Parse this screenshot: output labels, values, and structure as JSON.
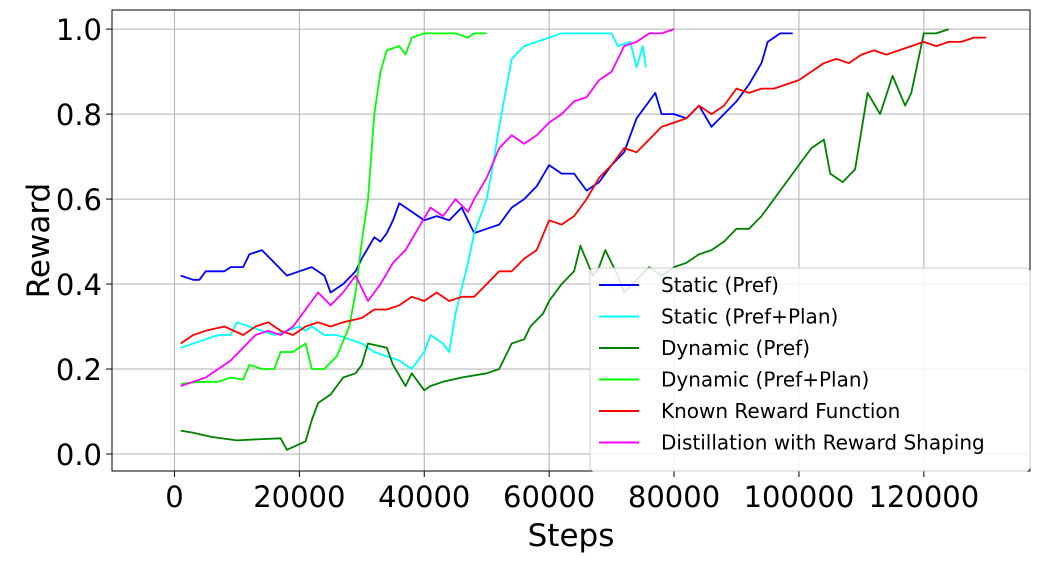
{
  "chart_data": {
    "type": "line",
    "xlabel": "Steps",
    "ylabel": "Reward",
    "xlim": [
      -10000,
      137000
    ],
    "ylim": [
      -0.04,
      1.045
    ],
    "xticks": [
      0,
      20000,
      40000,
      60000,
      80000,
      100000,
      120000
    ],
    "xtick_labels": [
      "0",
      "20000",
      "40000",
      "60000",
      "80000",
      "100000",
      "120000"
    ],
    "yticks": [
      0.0,
      0.2,
      0.4,
      0.6,
      0.8,
      1.0
    ],
    "ytick_labels": [
      "0.0",
      "0.2",
      "0.4",
      "0.6",
      "0.8",
      "1.0"
    ],
    "grid": true,
    "legend_position": "lower-right",
    "series": [
      {
        "name": "Static (Pref)",
        "color": "#0000ff",
        "points": [
          [
            1000,
            0.42
          ],
          [
            3000,
            0.41
          ],
          [
            4000,
            0.41
          ],
          [
            5000,
            0.43
          ],
          [
            8000,
            0.43
          ],
          [
            9000,
            0.44
          ],
          [
            11000,
            0.44
          ],
          [
            12000,
            0.47
          ],
          [
            14000,
            0.48
          ],
          [
            16000,
            0.45
          ],
          [
            18000,
            0.42
          ],
          [
            20000,
            0.43
          ],
          [
            22000,
            0.44
          ],
          [
            24000,
            0.42
          ],
          [
            25000,
            0.38
          ],
          [
            27000,
            0.4
          ],
          [
            29000,
            0.43
          ],
          [
            30000,
            0.46
          ],
          [
            32000,
            0.51
          ],
          [
            33000,
            0.5
          ],
          [
            34000,
            0.52
          ],
          [
            35000,
            0.55
          ],
          [
            36000,
            0.59
          ],
          [
            38000,
            0.57
          ],
          [
            40000,
            0.55
          ],
          [
            42000,
            0.56
          ],
          [
            44000,
            0.55
          ],
          [
            46000,
            0.58
          ],
          [
            48000,
            0.52
          ],
          [
            50000,
            0.53
          ],
          [
            52000,
            0.54
          ],
          [
            54000,
            0.58
          ],
          [
            56000,
            0.6
          ],
          [
            58000,
            0.63
          ],
          [
            60000,
            0.68
          ],
          [
            62000,
            0.66
          ],
          [
            64000,
            0.66
          ],
          [
            66000,
            0.62
          ],
          [
            68000,
            0.64
          ],
          [
            70000,
            0.68
          ],
          [
            72000,
            0.71
          ],
          [
            74000,
            0.79
          ],
          [
            76000,
            0.83
          ],
          [
            77000,
            0.85
          ],
          [
            78000,
            0.8
          ],
          [
            80000,
            0.8
          ],
          [
            82000,
            0.79
          ],
          [
            84000,
            0.82
          ],
          [
            86000,
            0.77
          ],
          [
            88000,
            0.8
          ],
          [
            90000,
            0.83
          ],
          [
            92000,
            0.87
          ],
          [
            94000,
            0.92
          ],
          [
            95000,
            0.97
          ],
          [
            97000,
            0.99
          ],
          [
            99000,
            0.99
          ]
        ]
      },
      {
        "name": "Static (Pref+Plan)",
        "color": "#00ffff",
        "points": [
          [
            1000,
            0.25
          ],
          [
            3000,
            0.26
          ],
          [
            5000,
            0.27
          ],
          [
            7000,
            0.28
          ],
          [
            9000,
            0.28
          ],
          [
            10000,
            0.31
          ],
          [
            12000,
            0.3
          ],
          [
            14000,
            0.29
          ],
          [
            16000,
            0.28
          ],
          [
            18000,
            0.29
          ],
          [
            20000,
            0.3
          ],
          [
            21000,
            0.29
          ],
          [
            22000,
            0.3
          ],
          [
            24000,
            0.28
          ],
          [
            26000,
            0.28
          ],
          [
            28000,
            0.27
          ],
          [
            30000,
            0.26
          ],
          [
            32000,
            0.24
          ],
          [
            34000,
            0.23
          ],
          [
            36000,
            0.22
          ],
          [
            38000,
            0.2
          ],
          [
            40000,
            0.24
          ],
          [
            41000,
            0.28
          ],
          [
            43000,
            0.26
          ],
          [
            44000,
            0.24
          ],
          [
            45000,
            0.33
          ],
          [
            47000,
            0.45
          ],
          [
            48000,
            0.52
          ],
          [
            50000,
            0.6
          ],
          [
            51000,
            0.68
          ],
          [
            52000,
            0.77
          ],
          [
            53000,
            0.85
          ],
          [
            54000,
            0.93
          ],
          [
            56000,
            0.96
          ],
          [
            58000,
            0.97
          ],
          [
            60000,
            0.98
          ],
          [
            62000,
            0.99
          ],
          [
            65000,
            0.99
          ],
          [
            70000,
            0.99
          ],
          [
            71000,
            0.96
          ],
          [
            73000,
            0.97
          ],
          [
            74000,
            0.91
          ],
          [
            75000,
            0.96
          ],
          [
            75500,
            0.91
          ]
        ]
      },
      {
        "name": "Dynamic (Pref)",
        "color": "#008000",
        "points": [
          [
            1000,
            0.055
          ],
          [
            3000,
            0.05
          ],
          [
            6000,
            0.04
          ],
          [
            10000,
            0.032
          ],
          [
            14000,
            0.035
          ],
          [
            17000,
            0.037
          ],
          [
            18000,
            0.01
          ],
          [
            21000,
            0.03
          ],
          [
            22000,
            0.08
          ],
          [
            23000,
            0.12
          ],
          [
            25000,
            0.14
          ],
          [
            26000,
            0.16
          ],
          [
            27000,
            0.18
          ],
          [
            29000,
            0.19
          ],
          [
            30000,
            0.21
          ],
          [
            31000,
            0.26
          ],
          [
            34000,
            0.25
          ],
          [
            35000,
            0.21
          ],
          [
            37000,
            0.16
          ],
          [
            38000,
            0.19
          ],
          [
            40000,
            0.15
          ],
          [
            41000,
            0.16
          ],
          [
            43000,
            0.17
          ],
          [
            46000,
            0.18
          ],
          [
            50000,
            0.19
          ],
          [
            52000,
            0.2
          ],
          [
            54000,
            0.26
          ],
          [
            56000,
            0.27
          ],
          [
            57000,
            0.3
          ],
          [
            59000,
            0.33
          ],
          [
            60000,
            0.36
          ],
          [
            62000,
            0.4
          ],
          [
            64000,
            0.43
          ],
          [
            65000,
            0.49
          ],
          [
            67000,
            0.42
          ],
          [
            68000,
            0.44
          ],
          [
            69000,
            0.48
          ],
          [
            71000,
            0.42
          ],
          [
            72000,
            0.38
          ],
          [
            74000,
            0.41
          ],
          [
            76000,
            0.44
          ],
          [
            78000,
            0.42
          ],
          [
            80000,
            0.44
          ],
          [
            82000,
            0.45
          ],
          [
            84000,
            0.47
          ],
          [
            86000,
            0.48
          ],
          [
            88000,
            0.5
          ],
          [
            90000,
            0.53
          ],
          [
            92000,
            0.53
          ],
          [
            94000,
            0.56
          ],
          [
            96000,
            0.6
          ],
          [
            98000,
            0.64
          ],
          [
            100000,
            0.68
          ],
          [
            102000,
            0.72
          ],
          [
            104000,
            0.74
          ],
          [
            105000,
            0.66
          ],
          [
            107000,
            0.64
          ],
          [
            109000,
            0.67
          ],
          [
            111000,
            0.85
          ],
          [
            113000,
            0.8
          ],
          [
            115000,
            0.89
          ],
          [
            117000,
            0.82
          ],
          [
            118000,
            0.85
          ],
          [
            120000,
            0.99
          ],
          [
            122000,
            0.99
          ],
          [
            124000,
            1.0
          ]
        ]
      },
      {
        "name": "Dynamic (Pref+Plan)",
        "color": "#00ff00",
        "points": [
          [
            1000,
            0.165
          ],
          [
            4000,
            0.17
          ],
          [
            7000,
            0.17
          ],
          [
            9000,
            0.18
          ],
          [
            11000,
            0.175
          ],
          [
            12000,
            0.21
          ],
          [
            14000,
            0.2
          ],
          [
            16000,
            0.2
          ],
          [
            17000,
            0.24
          ],
          [
            19000,
            0.24
          ],
          [
            21000,
            0.26
          ],
          [
            22000,
            0.2
          ],
          [
            24000,
            0.2
          ],
          [
            26000,
            0.23
          ],
          [
            28000,
            0.3
          ],
          [
            29000,
            0.38
          ],
          [
            30000,
            0.5
          ],
          [
            31000,
            0.6
          ],
          [
            31500,
            0.7
          ],
          [
            32000,
            0.8
          ],
          [
            33000,
            0.9
          ],
          [
            34000,
            0.95
          ],
          [
            36000,
            0.96
          ],
          [
            37000,
            0.94
          ],
          [
            38000,
            0.98
          ],
          [
            40000,
            0.99
          ],
          [
            42000,
            0.99
          ],
          [
            45000,
            0.99
          ],
          [
            47000,
            0.98
          ],
          [
            48000,
            0.99
          ],
          [
            50000,
            0.99
          ]
        ]
      },
      {
        "name": "Known Reward Function",
        "color": "#ff0000",
        "points": [
          [
            1000,
            0.26
          ],
          [
            3000,
            0.28
          ],
          [
            5000,
            0.29
          ],
          [
            8000,
            0.3
          ],
          [
            11000,
            0.28
          ],
          [
            13000,
            0.3
          ],
          [
            15000,
            0.31
          ],
          [
            17000,
            0.29
          ],
          [
            19000,
            0.28
          ],
          [
            21000,
            0.3
          ],
          [
            23000,
            0.31
          ],
          [
            25000,
            0.3
          ],
          [
            27000,
            0.31
          ],
          [
            30000,
            0.32
          ],
          [
            32000,
            0.34
          ],
          [
            34000,
            0.34
          ],
          [
            36000,
            0.35
          ],
          [
            38000,
            0.37
          ],
          [
            40000,
            0.36
          ],
          [
            42000,
            0.38
          ],
          [
            44000,
            0.36
          ],
          [
            46000,
            0.37
          ],
          [
            48000,
            0.37
          ],
          [
            50000,
            0.4
          ],
          [
            52000,
            0.43
          ],
          [
            54000,
            0.43
          ],
          [
            56000,
            0.46
          ],
          [
            58000,
            0.48
          ],
          [
            60000,
            0.55
          ],
          [
            62000,
            0.54
          ],
          [
            64000,
            0.56
          ],
          [
            66000,
            0.6
          ],
          [
            68000,
            0.65
          ],
          [
            70000,
            0.68
          ],
          [
            72000,
            0.72
          ],
          [
            74000,
            0.71
          ],
          [
            76000,
            0.74
          ],
          [
            78000,
            0.77
          ],
          [
            80000,
            0.78
          ],
          [
            82000,
            0.79
          ],
          [
            84000,
            0.82
          ],
          [
            86000,
            0.8
          ],
          [
            88000,
            0.82
          ],
          [
            90000,
            0.86
          ],
          [
            92000,
            0.85
          ],
          [
            94000,
            0.86
          ],
          [
            96000,
            0.86
          ],
          [
            98000,
            0.87
          ],
          [
            100000,
            0.88
          ],
          [
            102000,
            0.9
          ],
          [
            104000,
            0.92
          ],
          [
            106000,
            0.93
          ],
          [
            108000,
            0.92
          ],
          [
            110000,
            0.94
          ],
          [
            112000,
            0.95
          ],
          [
            114000,
            0.94
          ],
          [
            116000,
            0.95
          ],
          [
            118000,
            0.96
          ],
          [
            120000,
            0.97
          ],
          [
            122000,
            0.96
          ],
          [
            124000,
            0.97
          ],
          [
            126000,
            0.97
          ],
          [
            128000,
            0.98
          ],
          [
            130000,
            0.98
          ]
        ]
      },
      {
        "name": "Distillation with Reward Shaping",
        "color": "#ff00ff",
        "points": [
          [
            1000,
            0.16
          ],
          [
            3000,
            0.17
          ],
          [
            5000,
            0.18
          ],
          [
            7000,
            0.2
          ],
          [
            9000,
            0.22
          ],
          [
            11000,
            0.25
          ],
          [
            13000,
            0.28
          ],
          [
            15000,
            0.29
          ],
          [
            17000,
            0.28
          ],
          [
            19000,
            0.3
          ],
          [
            21000,
            0.34
          ],
          [
            23000,
            0.38
          ],
          [
            25000,
            0.35
          ],
          [
            27000,
            0.38
          ],
          [
            29000,
            0.42
          ],
          [
            31000,
            0.36
          ],
          [
            33000,
            0.4
          ],
          [
            35000,
            0.45
          ],
          [
            37000,
            0.48
          ],
          [
            39000,
            0.53
          ],
          [
            41000,
            0.58
          ],
          [
            43000,
            0.56
          ],
          [
            45000,
            0.6
          ],
          [
            47000,
            0.57
          ],
          [
            48000,
            0.6
          ],
          [
            50000,
            0.65
          ],
          [
            52000,
            0.72
          ],
          [
            54000,
            0.75
          ],
          [
            56000,
            0.73
          ],
          [
            58000,
            0.75
          ],
          [
            60000,
            0.78
          ],
          [
            62000,
            0.8
          ],
          [
            64000,
            0.83
          ],
          [
            66000,
            0.84
          ],
          [
            68000,
            0.88
          ],
          [
            70000,
            0.9
          ],
          [
            72000,
            0.96
          ],
          [
            74000,
            0.97
          ],
          [
            76000,
            0.99
          ],
          [
            78000,
            0.99
          ],
          [
            80000,
            1.0
          ]
        ]
      }
    ]
  }
}
